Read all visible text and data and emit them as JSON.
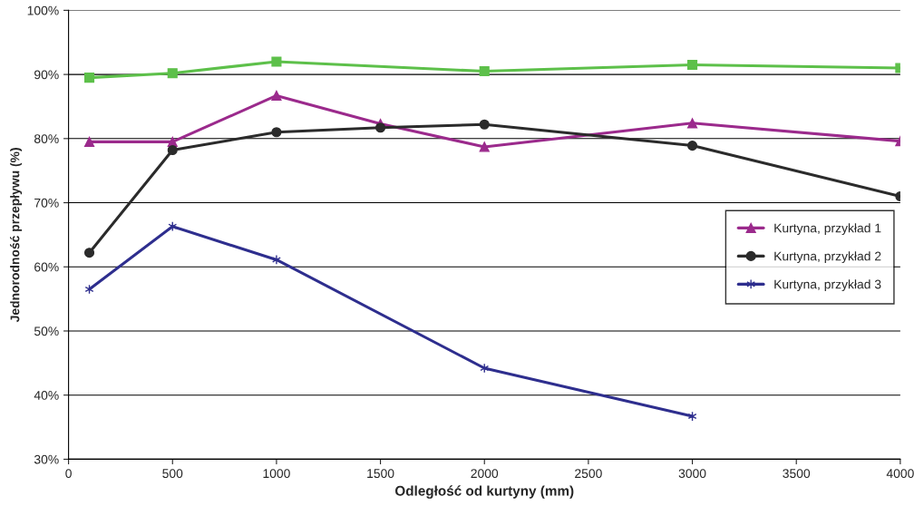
{
  "chart_data": {
    "type": "line",
    "xlabel": "Odległość od kurtyny (mm)",
    "ylabel": "Jednorodność przepływu (%)",
    "xlim": [
      0,
      4000
    ],
    "xticks": [
      0,
      500,
      1000,
      1500,
      2000,
      2500,
      3000,
      3500,
      4000
    ],
    "ylim": [
      30,
      100
    ],
    "yticks": [
      {
        "value": 30,
        "label": "30%"
      },
      {
        "value": 40,
        "label": "40%"
      },
      {
        "value": 50,
        "label": "50%"
      },
      {
        "value": 60,
        "label": "60%"
      },
      {
        "value": 70,
        "label": "70%"
      },
      {
        "value": 80,
        "label": "80%"
      },
      {
        "value": 90,
        "label": "90%"
      },
      {
        "value": 100,
        "label": "100%"
      }
    ],
    "grid": "y",
    "legend": "center right",
    "series": [
      {
        "color": "#5dc04a",
        "marker": "square",
        "x": [
          100,
          500,
          1000,
          2000,
          3000,
          4000
        ],
        "values": [
          89.5,
          90.2,
          92,
          90.5,
          91.5,
          91
        ]
      },
      {
        "name": "Kurtyna, przykład 1",
        "color": "#9b2a8c",
        "marker": "triangle",
        "x": [
          100,
          500,
          1000,
          1500,
          2000,
          3000,
          4000
        ],
        "values": [
          79.5,
          79.5,
          86.7,
          82.3,
          78.7,
          82.4,
          79.6
        ]
      },
      {
        "name": "Kurtyna, przykład 2",
        "color": "#2b2b2b",
        "marker": "circle",
        "x": [
          100,
          500,
          1000,
          1500,
          2000,
          3000,
          4000
        ],
        "values": [
          62.2,
          78.2,
          81,
          81.7,
          82.2,
          78.9,
          71
        ]
      },
      {
        "name": "Kurtyna, przykład 3",
        "color": "#2e2e8e",
        "marker": "cross",
        "x": [
          100,
          500,
          1000,
          2000,
          3000
        ],
        "values": [
          56.5,
          66.3,
          61.1,
          44.2,
          36.7
        ]
      }
    ]
  }
}
